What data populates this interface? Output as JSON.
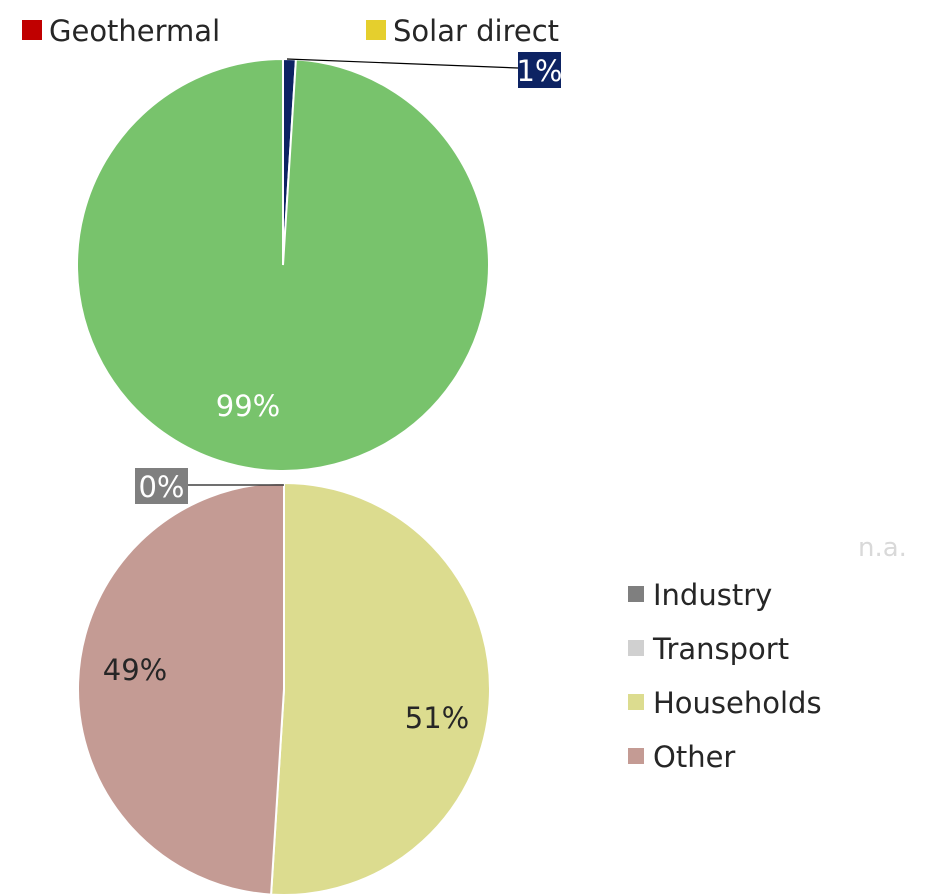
{
  "colors": {
    "solar_thermal": "#78c36c",
    "biomass": "#0d2363",
    "industry": "#7f7f7f",
    "transport": "#d0d0d0",
    "households": "#dcdc8f",
    "other": "#c49b94"
  },
  "top_legend": [
    {
      "label": "Geothermal",
      "color": "#c00000"
    },
    {
      "label": "Solar direct",
      "color": "#e5cf2d"
    }
  ],
  "bottom_legend": [
    {
      "label": "Industry",
      "color": "#7f7f7f"
    },
    {
      "label": "Transport",
      "color": "#d0d0d0"
    },
    {
      "label": "Households",
      "color": "#dcdc8f"
    },
    {
      "label": "Other",
      "color": "#c49b94"
    }
  ],
  "na_text": "n.a.",
  "chart_data": [
    {
      "type": "pie",
      "slices": [
        {
          "value": 1,
          "label": "1%",
          "color": "#0d2363"
        },
        {
          "value": 99,
          "label": "99%",
          "color": "#78c36c"
        }
      ]
    },
    {
      "type": "pie",
      "slices": [
        {
          "name": "Industry",
          "value": 0,
          "label": "0%",
          "color": "#7f7f7f"
        },
        {
          "name": "Transport",
          "value": 0,
          "label": "",
          "color": "#d0d0d0"
        },
        {
          "name": "Households",
          "value": 51,
          "label": "51%",
          "color": "#dcdc8f"
        },
        {
          "name": "Other",
          "value": 49,
          "label": "49%",
          "color": "#c49b94"
        }
      ]
    }
  ]
}
